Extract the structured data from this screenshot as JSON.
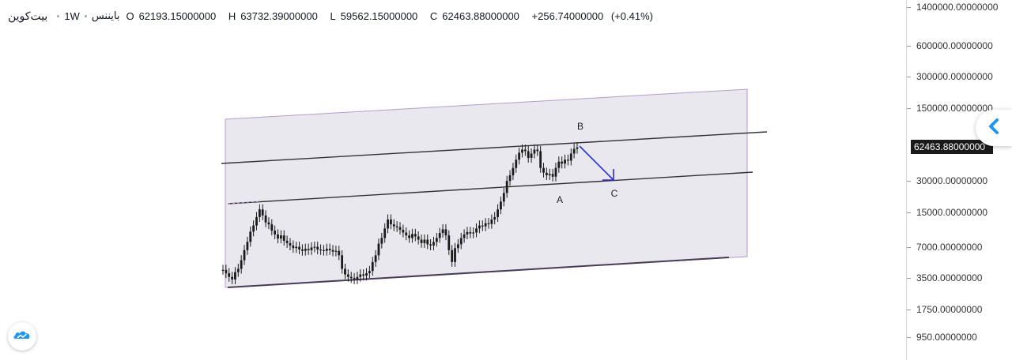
{
  "legend": {
    "symbol": "بیت‌کوین",
    "interval": "1W",
    "exchange": "بایننس",
    "open_label": "O",
    "open": "62193.15000000",
    "high_label": "H",
    "high": "63732.39000000",
    "low_label": "L",
    "low": "59562.15000000",
    "close_label": "C",
    "close": "62463.88000000",
    "change": "+256.74000000",
    "change_pct": "(+0.41%)"
  },
  "price_axis": {
    "last_price": "62463.88000000",
    "ticks": [
      {
        "value": 1400000,
        "label": "1400000.00000000"
      },
      {
        "value": 600000,
        "label": "600000.00000000"
      },
      {
        "value": 300000,
        "label": "300000.00000000"
      },
      {
        "value": 150000,
        "label": "150000.00000000"
      },
      {
        "value": 30000,
        "label": "30000.00000000"
      },
      {
        "value": 15000,
        "label": "15000.00000000"
      },
      {
        "value": 7000,
        "label": "7000.00000000"
      },
      {
        "value": 3500,
        "label": "3500.00000000"
      },
      {
        "value": 1750,
        "label": "1750.00000000"
      },
      {
        "value": 950,
        "label": "950.00000000"
      }
    ]
  },
  "annotations": {
    "A": "A",
    "B": "B",
    "C": "C"
  },
  "icons": {
    "collapse": "chevron-left-icon",
    "logo": "tradingview-cloud-icon"
  },
  "colors": {
    "channel_fill": "#e8e8ee",
    "channel_border": "#b79ac9",
    "candle": "#1b1b1b",
    "arrow": "#2b2bd6",
    "accent": "#2196f3"
  },
  "chart_data": {
    "type": "candlestick",
    "scale": "log",
    "ylim": [
      850,
      1500000
    ],
    "description_series": [
      {
        "name": "",
        "values": [
          4200,
          3900,
          3600,
          3400,
          4000,
          4300,
          5200,
          6500,
          7800,
          9800,
          11200,
          13500,
          16000,
          14000,
          12000,
          11500,
          10000,
          9200,
          8400,
          9000,
          8000,
          7600,
          7200,
          6800,
          7000,
          6600,
          6400,
          6700,
          6500,
          6900,
          7000,
          6600,
          6500,
          6400,
          6700,
          6500,
          6300,
          6400,
          5800,
          4300,
          3800,
          3600,
          3500,
          3400,
          3600,
          3800,
          3700,
          3900,
          4100,
          5000,
          5800,
          7500,
          8500,
          10500,
          12800,
          11500,
          11000,
          10800,
          10200,
          9600,
          9000,
          8500,
          9300,
          8800,
          8200,
          7600,
          8200,
          7400,
          7200,
          7800,
          8500,
          9500,
          10300,
          9000,
          6500,
          5000,
          6800,
          7400,
          8500,
          9200,
          9700,
          9400,
          9600,
          10500,
          11200,
          11000,
          11800,
          11600,
          12800,
          13500,
          16000,
          19000,
          23000,
          30000,
          34000,
          40000,
          48000,
          56000,
          60000,
          58000,
          50000,
          55000,
          60000,
          58000,
          40000,
          36000,
          34000,
          35000,
          33000,
          40000,
          46000,
          44000,
          48000,
          47000,
          55000,
          61000,
          63000
        ]
      }
    ]
  }
}
